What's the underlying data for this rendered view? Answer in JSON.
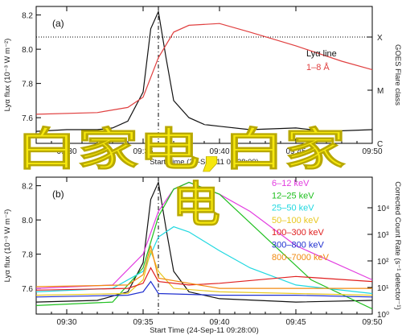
{
  "colors": {
    "overlay": "#f6e80e",
    "lya": "#111111",
    "goes": "#e04040"
  },
  "chart_data": [
    {
      "type": "line",
      "panel_label": "(a)",
      "ylabel": "Lyα flux (10⁻³ W m⁻²)",
      "xlabel": "Start Time (24-Sep-11 09:28:00)",
      "xlim": [
        "09:28",
        "09:50"
      ],
      "ylim": [
        7.45,
        8.25
      ],
      "x_ticks": [
        "09:30",
        "09:35",
        "09:40",
        "09:45",
        "09:50"
      ],
      "y_ticks": [
        "7.6",
        "7.8",
        "8.0",
        "8.2"
      ],
      "right_axis_label": "GOES Flare class",
      "right_ticks": [
        "X",
        "M",
        "C"
      ],
      "legend": [
        {
          "name": "Lyα line",
          "color": "#111111"
        },
        {
          "name": "1–8 Å",
          "color": "#e04040"
        }
      ],
      "series": [
        {
          "name": "Lyα line",
          "color": "#111111",
          "x": [
            "09:28",
            "09:30",
            "09:32",
            "09:33",
            "09:34",
            "09:35",
            "09:35:30",
            "09:36",
            "09:36:30",
            "09:37",
            "09:38",
            "09:39",
            "09:40",
            "09:42",
            "09:45",
            "09:47",
            "09:50"
          ],
          "y": [
            7.52,
            7.53,
            7.53,
            7.54,
            7.58,
            7.75,
            8.12,
            8.22,
            7.95,
            7.7,
            7.6,
            7.56,
            7.55,
            7.53,
            7.54,
            7.52,
            7.53
          ]
        },
        {
          "name": "1–8 Å",
          "color": "#e04040",
          "x": [
            "09:28",
            "09:32",
            "09:34",
            "09:35",
            "09:36",
            "09:37",
            "09:38",
            "09:40",
            "09:42",
            "09:45",
            "09:48",
            "09:50"
          ],
          "y": [
            7.62,
            7.63,
            7.66,
            7.72,
            7.95,
            8.1,
            8.14,
            8.15,
            8.1,
            8.02,
            7.93,
            7.88
          ]
        }
      ],
      "peak_marker": "09:36"
    },
    {
      "type": "line",
      "panel_label": "(b)",
      "ylabel": "Lyα flux (10⁻³ W m⁻²)",
      "xlabel": "Start Time (24-Sep-11 09:28:00)",
      "right_axis_label": "Corrected Count Rate (s⁻¹ detector⁻¹)",
      "xlim": [
        "09:28",
        "09:50"
      ],
      "ylim": [
        7.45,
        8.25
      ],
      "x_ticks": [
        "09:30",
        "09:35",
        "09:40",
        "09:45",
        "09:50"
      ],
      "y_ticks": [
        "7.6",
        "7.8",
        "8.0",
        "8.2"
      ],
      "right_ticks": [
        "10⁴",
        "10³",
        "10²",
        "10¹",
        "10⁰"
      ],
      "legend": [
        {
          "name": "6–12 keV",
          "color": "#e23de0"
        },
        {
          "name": "12–25 keV",
          "color": "#20c020"
        },
        {
          "name": "25–50 keV",
          "color": "#20d8e0"
        },
        {
          "name": "50–100 keV",
          "color": "#e8c820"
        },
        {
          "name": "100–300 keV",
          "color": "#e02020"
        },
        {
          "name": "300–800 keV",
          "color": "#2030d0"
        },
        {
          "name": "800–7000 keV",
          "color": "#f08a10"
        }
      ],
      "series": [
        {
          "name": "Lyα line",
          "color": "#111111",
          "x": [
            "09:28",
            "09:32",
            "09:34",
            "09:35",
            "09:35:30",
            "09:36",
            "09:36:30",
            "09:37",
            "09:38",
            "09:40",
            "09:45",
            "09:50"
          ],
          "y": [
            7.52,
            7.53,
            7.58,
            7.75,
            8.12,
            8.22,
            7.95,
            7.7,
            7.58,
            7.54,
            7.52,
            7.53
          ]
        },
        {
          "name": "6–12 keV",
          "color": "#e23de0",
          "x": [
            "09:28",
            "09:33",
            "09:35",
            "09:36",
            "09:37",
            "09:38",
            "09:40",
            "09:42",
            "09:45",
            "09:50"
          ],
          "y": [
            7.6,
            7.62,
            7.8,
            8.05,
            8.18,
            8.22,
            8.15,
            8.05,
            7.85,
            7.65
          ]
        },
        {
          "name": "12–25 keV",
          "color": "#20c020",
          "x": [
            "09:28",
            "09:33",
            "09:35",
            "09:36",
            "09:37",
            "09:38",
            "09:40",
            "09:43",
            "09:46",
            "09:50"
          ],
          "y": [
            7.5,
            7.52,
            7.72,
            8.02,
            8.18,
            8.22,
            8.15,
            7.9,
            7.65,
            7.48
          ]
        },
        {
          "name": "25–50 keV",
          "color": "#20d8e0",
          "x": [
            "09:28",
            "09:33",
            "09:35",
            "09:36",
            "09:37",
            "09:38",
            "09:40",
            "09:42",
            "09:45",
            "09:50"
          ],
          "y": [
            7.58,
            7.6,
            7.7,
            7.9,
            7.96,
            7.93,
            7.82,
            7.72,
            7.62,
            7.57
          ]
        },
        {
          "name": "50–100 keV",
          "color": "#e8c820",
          "x": [
            "09:28",
            "09:34",
            "09:35",
            "09:35:30",
            "09:36",
            "09:37",
            "09:40",
            "09:45",
            "09:50"
          ],
          "y": [
            7.56,
            7.57,
            7.65,
            7.82,
            7.7,
            7.6,
            7.58,
            7.57,
            7.56
          ]
        },
        {
          "name": "100–300 keV",
          "color": "#e02020",
          "x": [
            "09:28",
            "09:34",
            "09:35",
            "09:35:30",
            "09:36",
            "09:38",
            "09:40",
            "09:45",
            "09:50"
          ],
          "y": [
            7.59,
            7.6,
            7.63,
            7.72,
            7.64,
            7.62,
            7.63,
            7.67,
            7.64
          ]
        },
        {
          "name": "300–800 keV",
          "color": "#2030d0",
          "x": [
            "09:28",
            "09:34",
            "09:35",
            "09:35:30",
            "09:36",
            "09:40",
            "09:45",
            "09:50"
          ],
          "y": [
            7.55,
            7.56,
            7.58,
            7.64,
            7.57,
            7.56,
            7.56,
            7.55
          ]
        },
        {
          "name": "800–7000 keV",
          "color": "#f08a10",
          "x": [
            "09:28",
            "09:34",
            "09:35",
            "09:35:30",
            "09:36",
            "09:40",
            "09:45",
            "09:50"
          ],
          "y": [
            7.61,
            7.62,
            7.68,
            7.85,
            7.66,
            7.6,
            7.6,
            7.6
          ]
        }
      ],
      "peak_marker": "09:36"
    }
  ],
  "overlay": {
    "line1": "白家电,白家",
    "line2": "电"
  }
}
